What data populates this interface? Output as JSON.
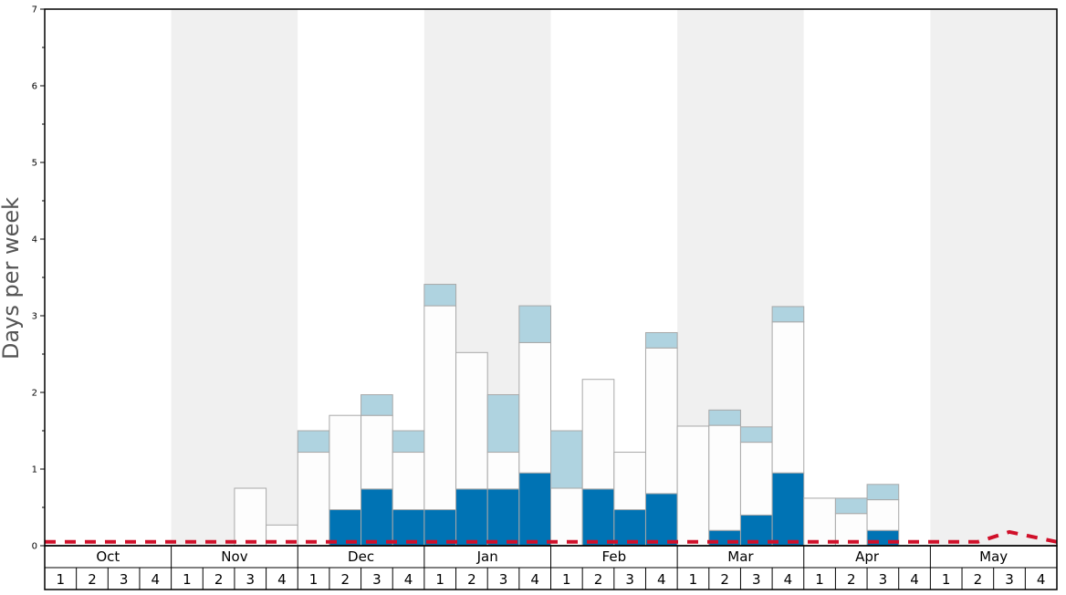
{
  "chart_data": {
    "type": "bar",
    "ylabel": "Days per week",
    "ylim": [
      0,
      7
    ],
    "yticks": [
      "0",
      "1",
      "2",
      "3",
      "4",
      "5",
      "6",
      "7"
    ],
    "months": [
      "Oct",
      "Nov",
      "Dec",
      "Jan",
      "Feb",
      "Mar",
      "Apr",
      "May"
    ],
    "week_labels": [
      "1",
      "2",
      "3",
      "4"
    ],
    "categories": [
      "Oct 1",
      "Oct 2",
      "Oct 3",
      "Oct 4",
      "Nov 1",
      "Nov 2",
      "Nov 3",
      "Nov 4",
      "Dec 1",
      "Dec 2",
      "Dec 3",
      "Dec 4",
      "Jan 1",
      "Jan 2",
      "Jan 3",
      "Jan 4",
      "Feb 1",
      "Feb 2",
      "Feb 3",
      "Feb 4",
      "Mar 1",
      "Mar 2",
      "Mar 3",
      "Mar 4",
      "Apr 1",
      "Apr 2",
      "Apr 3",
      "Apr 4",
      "May 1",
      "May 2",
      "May 3",
      "May 4"
    ],
    "series": [
      {
        "color": "#0073b4",
        "values": [
          0,
          0,
          0,
          0,
          0,
          0,
          0,
          0,
          0,
          0.47,
          0.74,
          0.47,
          0.47,
          0.74,
          0.74,
          0.95,
          0,
          0.74,
          0.47,
          0.68,
          0,
          0.2,
          0.4,
          0.95,
          0,
          0,
          0.2,
          0,
          0,
          0,
          0,
          0
        ]
      },
      {
        "color": "#fdfdfd",
        "values": [
          0,
          0,
          0,
          0,
          0,
          0,
          0.75,
          0.27,
          1.22,
          1.23,
          0.96,
          0.75,
          2.66,
          1.78,
          0.48,
          1.7,
          0.75,
          1.43,
          0.75,
          1.9,
          1.56,
          1.37,
          0.95,
          1.97,
          0.62,
          0.42,
          0.4,
          0,
          0,
          0,
          0,
          0
        ]
      },
      {
        "color": "#afd3e0",
        "values": [
          0,
          0,
          0,
          0,
          0,
          0,
          0,
          0,
          0.28,
          0,
          0.27,
          0.28,
          0.28,
          0,
          0.75,
          0.48,
          0.75,
          0,
          0,
          0.2,
          0,
          0.2,
          0.2,
          0.2,
          0,
          0.2,
          0.2,
          0,
          0,
          0,
          0,
          0
        ]
      }
    ],
    "reference_line": {
      "color": "#d0102a",
      "style": "dashed",
      "values": [
        0.05,
        0.05,
        0.05,
        0.05,
        0.05,
        0.05,
        0.05,
        0.05,
        0.05,
        0.05,
        0.05,
        0.05,
        0.05,
        0.05,
        0.05,
        0.05,
        0.05,
        0.05,
        0.05,
        0.05,
        0.05,
        0.05,
        0.05,
        0.05,
        0.05,
        0.05,
        0.05,
        0.05,
        0.05,
        0.05,
        0.18,
        0.05
      ]
    },
    "band_colors": [
      "#ffffff",
      "#f0f0f0"
    ],
    "grid": false
  }
}
